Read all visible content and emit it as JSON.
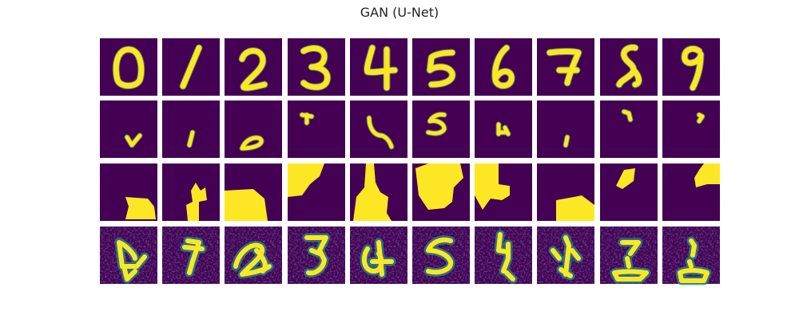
{
  "figure": {
    "title": "GAN (U-Net)",
    "rows": [
      {
        "name": "ground-truth-digits",
        "digits": [
          "0",
          "1",
          "2",
          "3",
          "4",
          "5",
          "6",
          "7",
          "8",
          "9"
        ]
      },
      {
        "name": "masked-fragments"
      },
      {
        "name": "binary-masks"
      },
      {
        "name": "gan-reconstructions"
      }
    ],
    "colors": {
      "background": "#440154",
      "foreground": "#fde725",
      "mid_teal": "#21918c",
      "mid_green": "#5ec962",
      "dark_blue": "#3b528b"
    }
  }
}
